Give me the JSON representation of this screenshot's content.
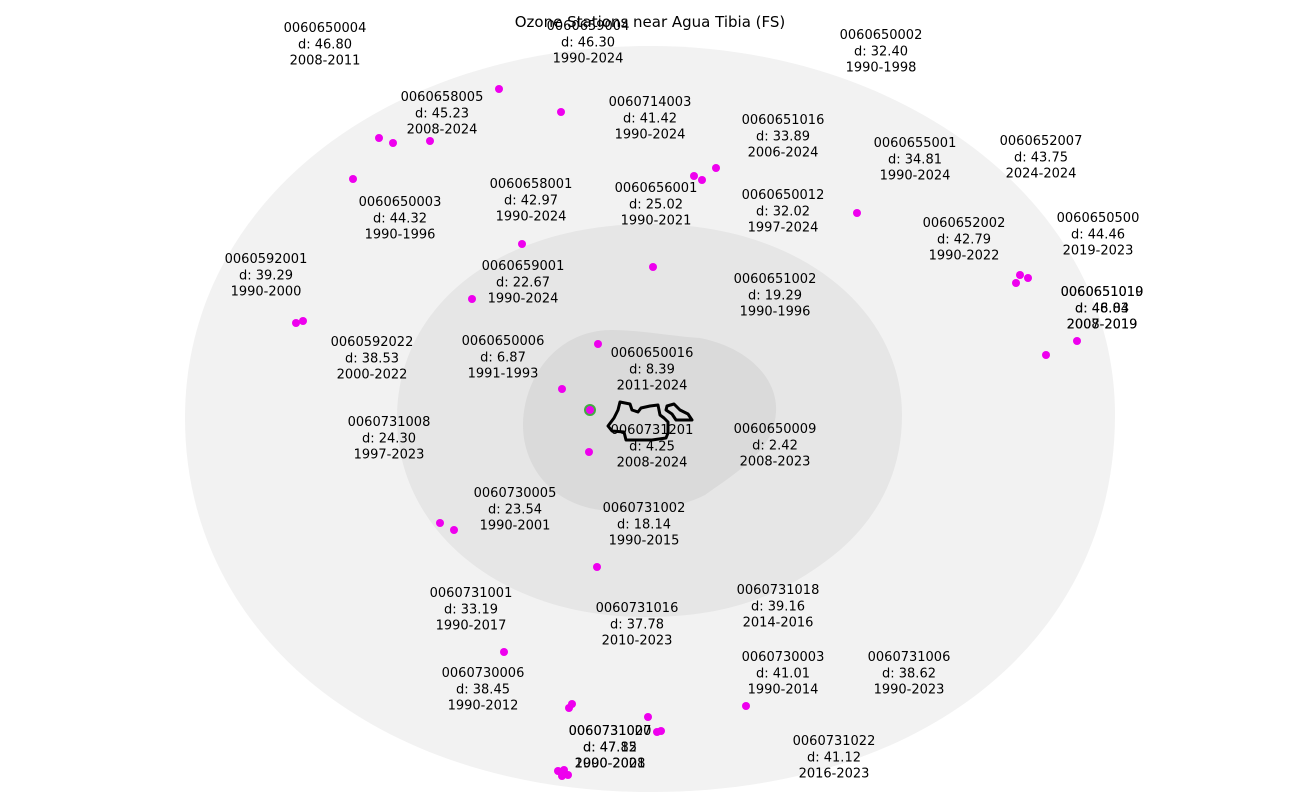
{
  "map": {
    "title": "Ozone Stations near Agua Tibia (FS)",
    "ring_colors": [
      "#f2f2f2",
      "#e6e6e6",
      "#dadada"
    ],
    "station_color": "#ee00ee",
    "reference_station_color": "#44aa44",
    "boundary_color": "#000000"
  },
  "stations": [
    {
      "id": "0060650004",
      "dist": "d: 46.80",
      "years": "2008-2011"
    },
    {
      "id": "0060659004",
      "dist": "d: 46.30",
      "years": "1990-2024"
    },
    {
      "id": "0060650002",
      "dist": "d: 32.40",
      "years": "1990-1998"
    },
    {
      "id": "0060658005",
      "dist": "d: 45.23",
      "years": "2008-2024"
    },
    {
      "id": "0060714003",
      "dist": "d: 41.42",
      "years": "1990-2024"
    },
    {
      "id": "0060651016",
      "dist": "d: 33.89",
      "years": "2006-2024"
    },
    {
      "id": "0060655001",
      "dist": "d: 34.81",
      "years": "1990-2024"
    },
    {
      "id": "0060652007",
      "dist": "d: 43.75",
      "years": "2024-2024"
    },
    {
      "id": "0060658001",
      "dist": "d: 42.97",
      "years": "1990-2024"
    },
    {
      "id": "0060656001",
      "dist": "d: 25.02",
      "years": "1990-2021"
    },
    {
      "id": "0060650012",
      "dist": "d: 32.02",
      "years": "1997-2024"
    },
    {
      "id": "0060650003",
      "dist": "d: 44.32",
      "years": "1990-1996"
    },
    {
      "id": "0060652002",
      "dist": "d: 42.79",
      "years": "1990-2022"
    },
    {
      "id": "0060650500",
      "dist": "d: 44.46",
      "years": "2019-2023"
    },
    {
      "id": "0060592001",
      "dist": "d: 39.29",
      "years": "1990-2000"
    },
    {
      "id": "0060659001",
      "dist": "d: 22.67",
      "years": "1990-2024"
    },
    {
      "id": "0060651002",
      "dist": "d: 19.29",
      "years": "1990-1996"
    },
    {
      "id": "0060651010",
      "dist": "d: 46.04",
      "years": "2007-2019"
    },
    {
      "id": "0060651019",
      "dist": "d: 48.83",
      "years": "2008-2019"
    },
    {
      "id": "0060592022",
      "dist": "d: 38.53",
      "years": "2000-2022"
    },
    {
      "id": "0060650006",
      "dist": "d: 6.87",
      "years": "1991-1993"
    },
    {
      "id": "0060650016",
      "dist": "d: 8.39",
      "years": "2011-2024"
    },
    {
      "id": "0060731008",
      "dist": "d: 24.30",
      "years": "1997-2023"
    },
    {
      "id": "0060731201",
      "dist": "d: 4.25",
      "years": "2008-2024"
    },
    {
      "id": "0060650009",
      "dist": "d: 2.42",
      "years": "2008-2023"
    },
    {
      "id": "0060730005",
      "dist": "d: 23.54",
      "years": "1990-2001"
    },
    {
      "id": "0060731002",
      "dist": "d: 18.14",
      "years": "1990-2015"
    },
    {
      "id": "0060731001",
      "dist": "d: 33.19",
      "years": "1990-2017"
    },
    {
      "id": "0060731016",
      "dist": "d: 37.78",
      "years": "2010-2023"
    },
    {
      "id": "0060731018",
      "dist": "d: 39.16",
      "years": "2014-2016"
    },
    {
      "id": "0060730006",
      "dist": "d: 38.45",
      "years": "1990-2012"
    },
    {
      "id": "0060730003",
      "dist": "d: 41.01",
      "years": "1990-2014"
    },
    {
      "id": "0060731006",
      "dist": "d: 38.62",
      "years": "1990-2023"
    },
    {
      "id": "0060731020",
      "dist": "d: 47.85",
      "years": "1990-2008"
    },
    {
      "id": "0060731007",
      "dist": "d: 47.12",
      "years": "2000-2021"
    },
    {
      "id": "0060731022",
      "dist": "d: 41.12",
      "years": "2016-2023"
    }
  ]
}
